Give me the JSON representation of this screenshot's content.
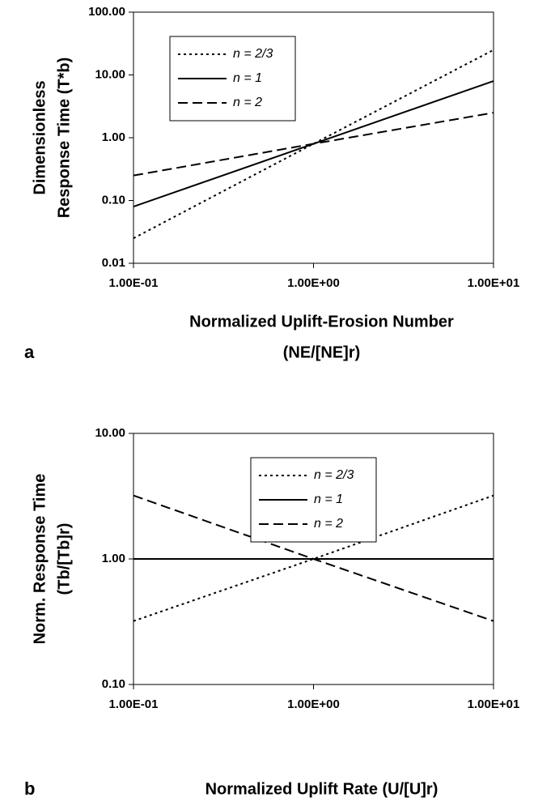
{
  "chart_data": [
    {
      "type": "line",
      "panel": "a",
      "log_x": true,
      "log_y": true,
      "xlabel": [
        "Normalized Uplift-Erosion Number",
        "(NE/[NE]r)"
      ],
      "ylabel": [
        "Dimensionless",
        "Response Time (T*b)"
      ],
      "x": [
        0.1,
        1,
        10
      ],
      "series": [
        {
          "name": "n = 2/3",
          "color": "#000000",
          "dash": "dot",
          "values": [
            0.025,
            0.8,
            25
          ]
        },
        {
          "name": "n = 1",
          "color": "#000000",
          "dash": "solid",
          "values": [
            0.08,
            0.8,
            8
          ]
        },
        {
          "name": "n = 2",
          "color": "#000000",
          "dash": "dash",
          "values": [
            0.25,
            0.8,
            2.5
          ]
        }
      ],
      "xlim": [
        0.1,
        10
      ],
      "xticks": [
        {
          "value": 0.1,
          "label": "1.00E-01"
        },
        {
          "value": 1,
          "label": "1.00E+00"
        },
        {
          "value": 10,
          "label": "1.00E+01"
        }
      ],
      "ylim": [
        0.01,
        100
      ],
      "yticks": [
        0.01,
        {
          "value": 0.1,
          "label": "0.10"
        },
        {
          "value": 1,
          "label": "1.00"
        },
        {
          "value": 10,
          "label": "10.00"
        },
        {
          "value": 100,
          "label": "100.00"
        }
      ],
      "legend": "upper left"
    },
    {
      "type": "line",
      "panel": "b",
      "log_x": true,
      "log_y": true,
      "xlabel": [
        "Normalized Uplift Rate (U/[U]r)"
      ],
      "ylabel": [
        "Norm. Response Time",
        "(Tb/[Tb]r)"
      ],
      "x": [
        0.1,
        1,
        10
      ],
      "series": [
        {
          "name": "n = 2/3",
          "color": "#000000",
          "dash": "dot",
          "values": [
            0.32,
            1,
            3.2
          ]
        },
        {
          "name": "n = 1",
          "color": "#000000",
          "dash": "solid",
          "values": [
            1,
            1,
            1
          ]
        },
        {
          "name": "n = 2",
          "color": "#000000",
          "dash": "dash",
          "values": [
            3.2,
            1,
            0.32
          ]
        }
      ],
      "xlim": [
        0.1,
        10
      ],
      "xticks": [
        {
          "value": 0.1,
          "label": "1.00E-01"
        },
        {
          "value": 1,
          "label": "1.00E+00"
        },
        {
          "value": 10,
          "label": "1.00E+01"
        }
      ],
      "ylim": [
        0.1,
        10
      ],
      "yticks": [
        {
          "value": 0.1,
          "label": "0.10"
        },
        {
          "value": 1,
          "label": "1.00"
        },
        {
          "value": 10,
          "label": "10.00"
        }
      ],
      "legend": "upper center"
    }
  ]
}
